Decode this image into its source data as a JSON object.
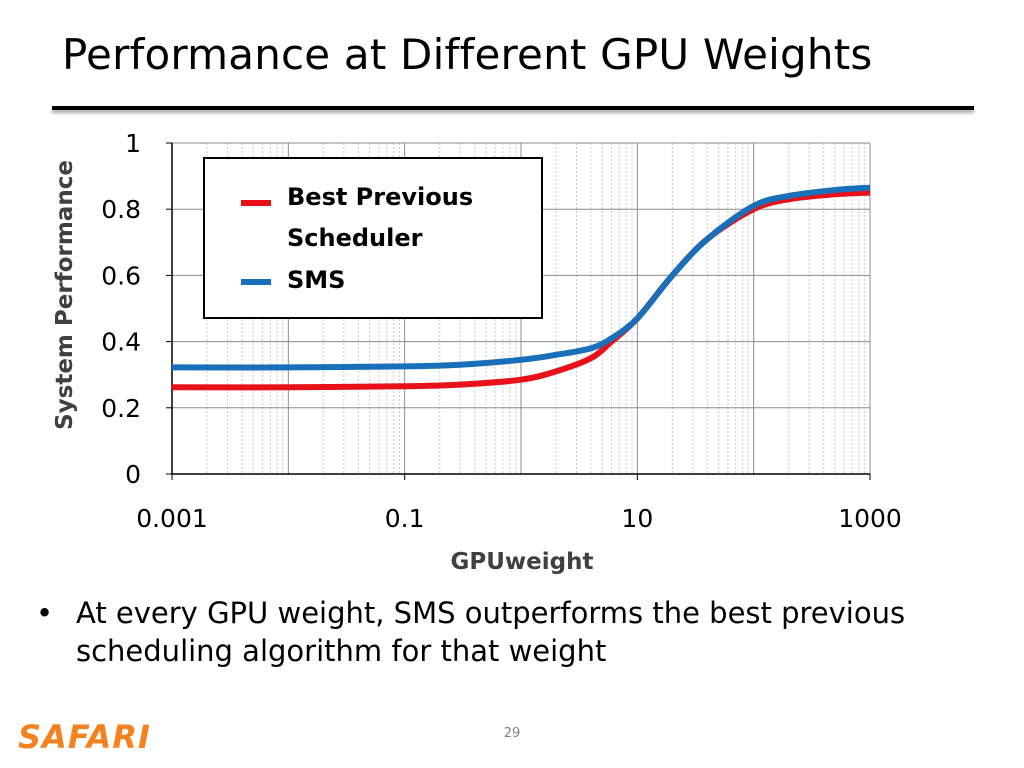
{
  "slide": {
    "title": "Performance at Different GPU Weights",
    "bullet": "At every GPU weight, SMS outperforms the best previous scheduling algorithm for that weight",
    "bullet_marker": "•",
    "logo": "SAFARI",
    "page_number": "29"
  },
  "colors": {
    "best_previous": "#e8111a",
    "sms": "#1a6fbb",
    "logo": "#f5821f"
  },
  "chart_data": {
    "type": "line",
    "xlabel": "GPUweight",
    "ylabel": "System Performance",
    "x_scale": "log",
    "xlim": [
      0.001,
      1000
    ],
    "ylim": [
      0,
      1
    ],
    "x_ticks": [
      0.001,
      0.1,
      10,
      1000
    ],
    "x_tick_labels": [
      "0.001",
      "0.1",
      "10",
      "1000"
    ],
    "y_ticks": [
      0,
      0.2,
      0.4,
      0.6,
      0.8,
      1
    ],
    "y_tick_labels": [
      "0",
      "0.2",
      "0.4",
      "0.6",
      "0.8",
      "1"
    ],
    "grid": true,
    "legend_position": "top-left",
    "series": [
      {
        "name": "Best Previous Scheduler",
        "color": "#e8111a",
        "x": [
          0.001,
          0.01,
          0.1,
          0.3,
          1,
          2,
          4,
          6,
          10,
          20,
          40,
          100,
          200,
          500,
          1000
        ],
        "y": [
          0.262,
          0.262,
          0.265,
          0.27,
          0.285,
          0.31,
          0.35,
          0.4,
          0.47,
          0.6,
          0.71,
          0.8,
          0.83,
          0.845,
          0.85
        ]
      },
      {
        "name": "SMS",
        "color": "#1a6fbb",
        "x": [
          0.001,
          0.01,
          0.1,
          0.3,
          1,
          2,
          4,
          6,
          10,
          20,
          40,
          100,
          200,
          500,
          1000
        ],
        "y": [
          0.322,
          0.322,
          0.325,
          0.33,
          0.345,
          0.36,
          0.38,
          0.41,
          0.47,
          0.6,
          0.71,
          0.81,
          0.84,
          0.858,
          0.865
        ]
      }
    ]
  }
}
